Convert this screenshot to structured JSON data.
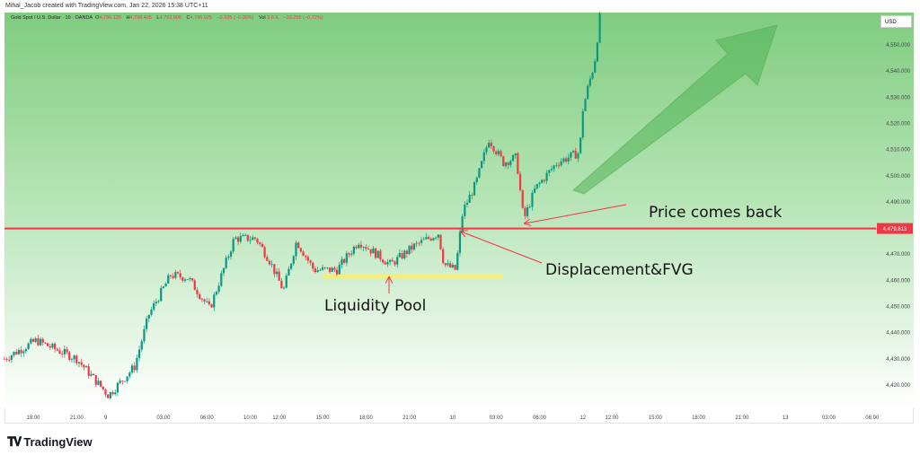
{
  "credit": "Mihal_Jacob created with TradingView.com, Jan 22, 2026 15:38 UTC+11",
  "legend": {
    "symbol": "Gold Spot / U.S. Dollar · 10 · OANDA",
    "o_label": "O",
    "o": "4,796.135",
    "h_label": "H",
    "h": "4,798.435",
    "l_label": "L",
    "l": "4,793.905",
    "c_label": "C",
    "c": "4,796.025",
    "change": "−0.105 (−0.00%)",
    "vol_label": "Vol",
    "vol": "3.6 K",
    "vol_change": "−33.255 (−0.72%)"
  },
  "currency": "USD",
  "brand": "TradingView",
  "colors": {
    "up": "#089981",
    "down": "#f23645",
    "level": "#f23645",
    "pool": "#f5ee7a",
    "arrow": "#4caf50"
  },
  "chart_data": {
    "type": "candlestick",
    "title": "Gold Spot / U.S. Dollar · 10 · OANDA",
    "ylim": [
      4412,
      4563
    ],
    "y_ticks": [
      "4,550.000",
      "4,540.000",
      "4,530.000",
      "4,520.000",
      "4,510.000",
      "4,500.000",
      "4,490.000",
      "4,470.000",
      "4,460.000",
      "4,450.000",
      "4,440.000",
      "4,430.000",
      "4,420.000"
    ],
    "y_tick_values": [
      4550,
      4540,
      4530,
      4520,
      4510,
      4500,
      4490,
      4470,
      4460,
      4450,
      4440,
      4430,
      4420
    ],
    "x_ticks": [
      "18:00",
      "21:00",
      "9",
      "03:00",
      "06:00",
      "10:00",
      "12:00",
      "15:00",
      "18:00",
      "21:00",
      "10",
      "03:00",
      "06:00",
      "12",
      "12:00",
      "15:00",
      "18:00",
      "21:00",
      "13",
      "03:00",
      "06:00"
    ],
    "x_tick_hours": [
      0,
      3,
      5,
      9,
      12,
      15,
      17,
      20,
      23,
      26,
      29,
      32,
      35,
      38,
      40,
      43,
      46,
      49,
      52,
      55,
      58
    ],
    "price_path_hours": [
      -2,
      0.2,
      3,
      5.2,
      7,
      8,
      9.5,
      10.7,
      12.2,
      13.9,
      15.4,
      16.3,
      17.3,
      18.2,
      19.4,
      21,
      22.5,
      24.7,
      26.3,
      28,
      28.4,
      29.2,
      29.7,
      30.6,
      31.5,
      32.5,
      33.4,
      33.9,
      34.7,
      36.2,
      37.8,
      37.9,
      38.4,
      38.8,
      39.2
    ],
    "price_path_values": [
      4430,
      4437,
      4430,
      4416,
      4427,
      4447,
      4462,
      4461,
      4449,
      4476,
      4476,
      4468,
      4456,
      4475,
      4464,
      4464,
      4475,
      4466,
      4473,
      4478,
      4466,
      4464,
      4486.5,
      4497,
      4514,
      4505,
      4507,
      4483,
      4495,
      4505,
      4509,
      4523,
      4535,
      4543,
      4562
    ],
    "level": {
      "value": 4479.813,
      "label": "4,479.813"
    },
    "liquidity_pool_value": 4461.5,
    "annotations": [
      "Liquidity Pool",
      "Displacement&FVG",
      "Price comes back"
    ]
  }
}
